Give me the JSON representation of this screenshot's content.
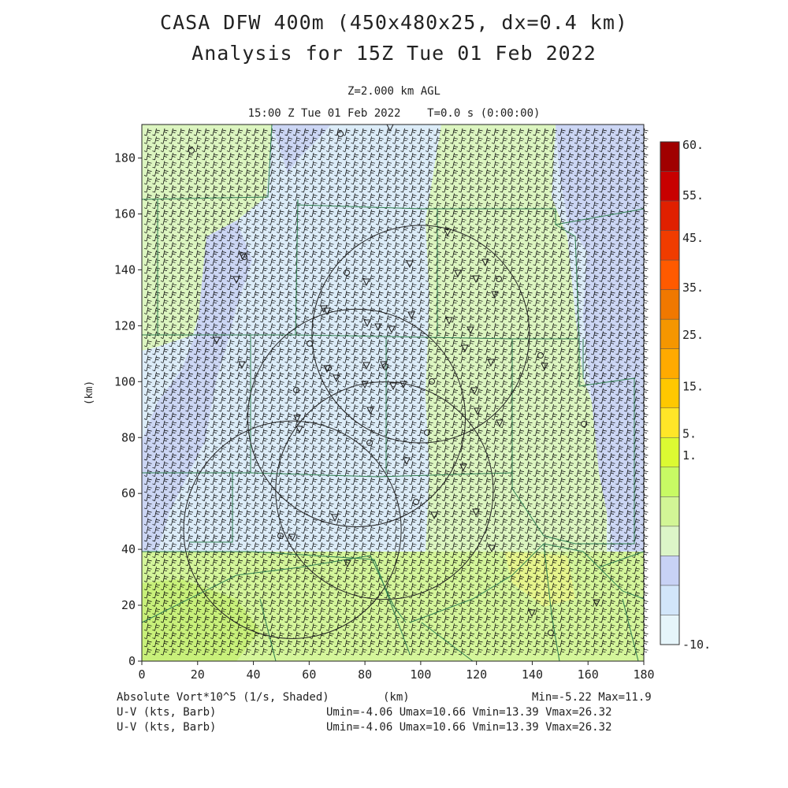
{
  "header": {
    "title_line1": "CASA DFW 400m (450x480x25, dx=0.4 km)",
    "title_line2": "Analysis for 15Z Tue 01 Feb 2022",
    "level": "Z=2.000 km AGL",
    "time": "15:00 Z Tue 01 Feb 2022    T=0.0 s (0:00:00)"
  },
  "axes": {
    "x_label": "(km)",
    "y_label": "(km)",
    "x_ticks": [
      "0",
      "20",
      "40",
      "60",
      "80",
      "100",
      "120",
      "140",
      "160",
      "180"
    ],
    "y_ticks": [
      "0",
      "20",
      "40",
      "60",
      "80",
      "100",
      "120",
      "140",
      "160",
      "180"
    ],
    "x_range": [
      0,
      180
    ],
    "y_range": [
      0,
      192
    ]
  },
  "colorbar": {
    "labels": [
      "60.",
      "55.",
      "45.",
      "35.",
      "25.",
      "15.",
      "5.",
      "1.",
      "-10."
    ],
    "colors": [
      "#a00000",
      "#c80000",
      "#e02000",
      "#f03c00",
      "#ff5a00",
      "#f07800",
      "#f59600",
      "#ffaa00",
      "#ffc800",
      "#ffe628",
      "#dcfa32",
      "#c8fa64",
      "#d2f596",
      "#dcf5c8",
      "#c8d2f5",
      "#d2e6fa",
      "#e6f5fa"
    ]
  },
  "footer": {
    "field_label": "Absolute Vort*10^5 (1/s, Shaded)",
    "units_label": "(km)",
    "minmax": "Min=-5.22 Max=11.9",
    "barb_label_1": "U-V (kts, Barb)",
    "barb_label_2": "U-V (kts, Barb)",
    "uv_stats_1": "Umin=-4.06 Umax=10.66 Vmin=13.39 Vmax=26.32",
    "uv_stats_2": "Umin=-4.06 Umax=10.66 Vmin=13.39 Vmax=26.32"
  },
  "radars": [
    {
      "name": "radar-ring-1",
      "cx": 100,
      "cy": 117,
      "r": 39
    },
    {
      "name": "radar-ring-2",
      "cx": 77,
      "cy": 87,
      "r": 39
    },
    {
      "name": "radar-ring-3",
      "cx": 87,
      "cy": 61,
      "r": 39
    },
    {
      "name": "radar-ring-4",
      "cx": 54,
      "cy": 47,
      "r": 39
    }
  ],
  "colors": {
    "lightblue": "#dcecf8",
    "blue": "#ccd6f4",
    "green": "#dcf5c0",
    "yellowgreen": "#d4f59a",
    "county_line": "#2e7d4f",
    "barb": "#000000"
  }
}
